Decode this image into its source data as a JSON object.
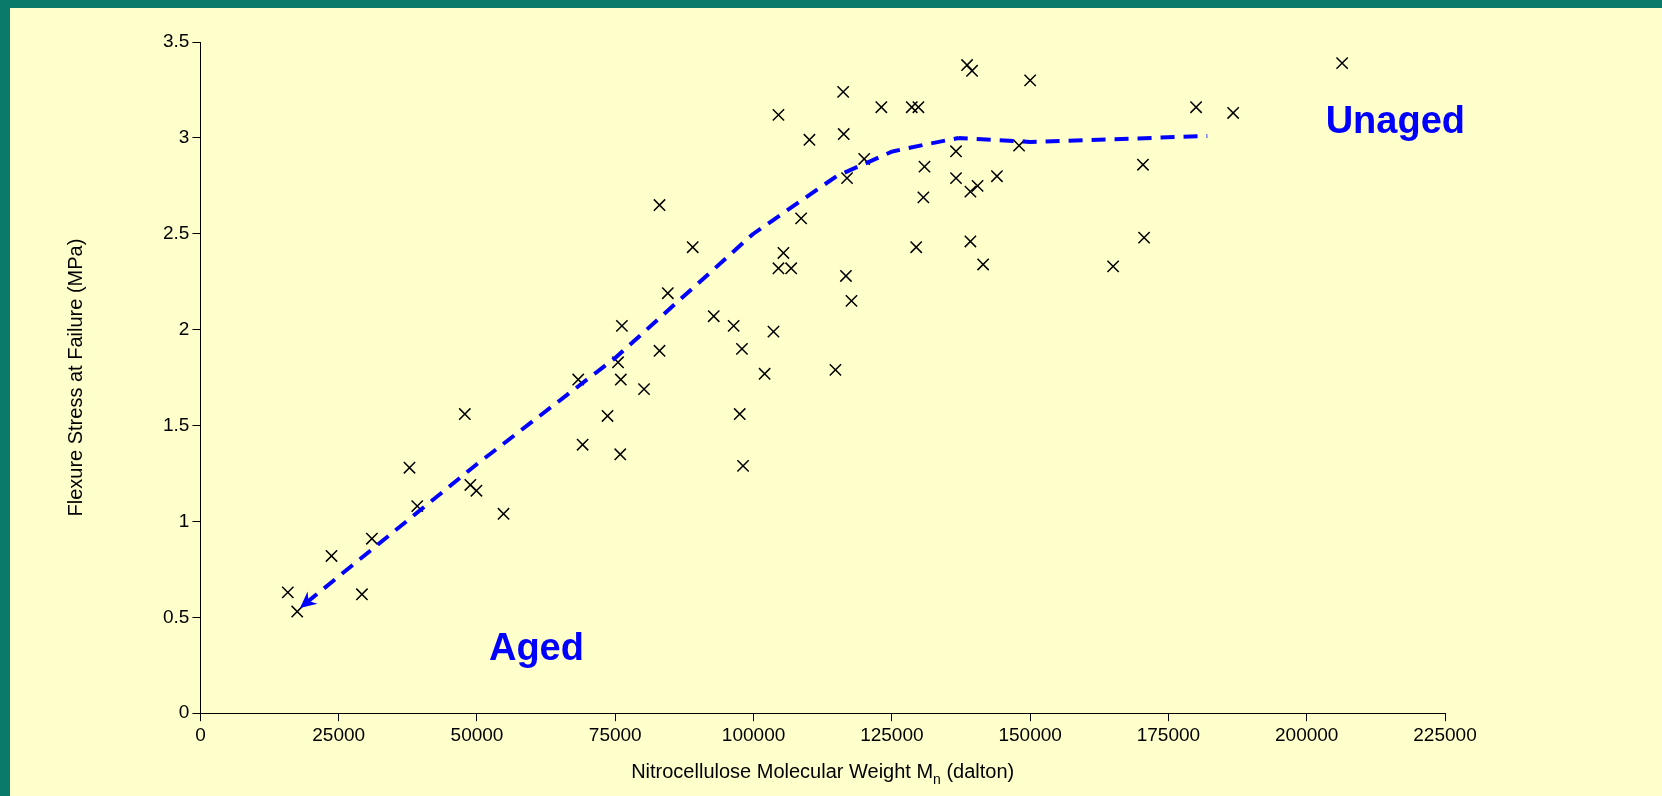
{
  "chart_data": {
    "type": "scatter",
    "xlabel": "Nitrocellulose Molecular Weight M$_{n}$ (dalton)",
    "ylabel": "Flexure Stress at Failure (MPa)",
    "xlim": [
      0,
      225000
    ],
    "xticks": [
      0,
      25000,
      50000,
      75000,
      100000,
      125000,
      150000,
      175000,
      200000,
      225000
    ],
    "ylim": [
      0,
      3.5
    ],
    "yticks": [
      0,
      0.5,
      1,
      1.5,
      2,
      2.5,
      3,
      3.5
    ],
    "grid": false,
    "legend": false,
    "series": [
      {
        "type": "scatter",
        "color": "#000000",
        "marker": "cross",
        "x": [
          15800,
          17500,
          23700,
          29200,
          31000,
          37800,
          39200,
          47800,
          48800,
          49900,
          54800,
          68300,
          69100,
          73600,
          75500,
          76200,
          76000,
          75900,
          80200,
          83000,
          83000,
          84500,
          89000,
          92800,
          96400,
          97500,
          97900,
          98100,
          102000,
          103600,
          104500,
          104500,
          105400,
          106800,
          108600,
          110100,
          114800,
          116200,
          116300,
          116700,
          116900,
          117700,
          120000,
          123100,
          128600,
          129800,
          129400,
          130700,
          130900,
          136600,
          136600,
          138600,
          139500,
          139200,
          139200,
          140500,
          141500,
          144000,
          150000,
          148000,
          165000,
          170400,
          170600,
          180000,
          186700,
          206400
        ],
        "values": [
          0.63,
          0.53,
          0.82,
          0.62,
          0.91,
          1.28,
          1.08,
          1.56,
          1.19,
          1.16,
          1.04,
          1.74,
          1.4,
          1.55,
          1.83,
          2.02,
          1.74,
          1.35,
          1.69,
          2.65,
          1.89,
          2.19,
          2.43,
          2.07,
          2.02,
          1.56,
          1.9,
          1.29,
          1.77,
          1.99,
          3.12,
          2.32,
          2.4,
          2.32,
          2.58,
          2.99,
          1.79,
          3.24,
          3.02,
          2.28,
          2.79,
          2.15,
          2.89,
          3.16,
          3.16,
          3.16,
          2.43,
          2.69,
          2.85,
          2.93,
          2.79,
          3.38,
          3.35,
          2.46,
          2.72,
          2.75,
          2.34,
          2.8,
          3.3,
          2.96,
          2.33,
          2.86,
          2.48,
          3.16,
          3.13,
          3.39
        ]
      }
    ],
    "annotations": [
      "Unaged",
      "Aged"
    ]
  }
}
